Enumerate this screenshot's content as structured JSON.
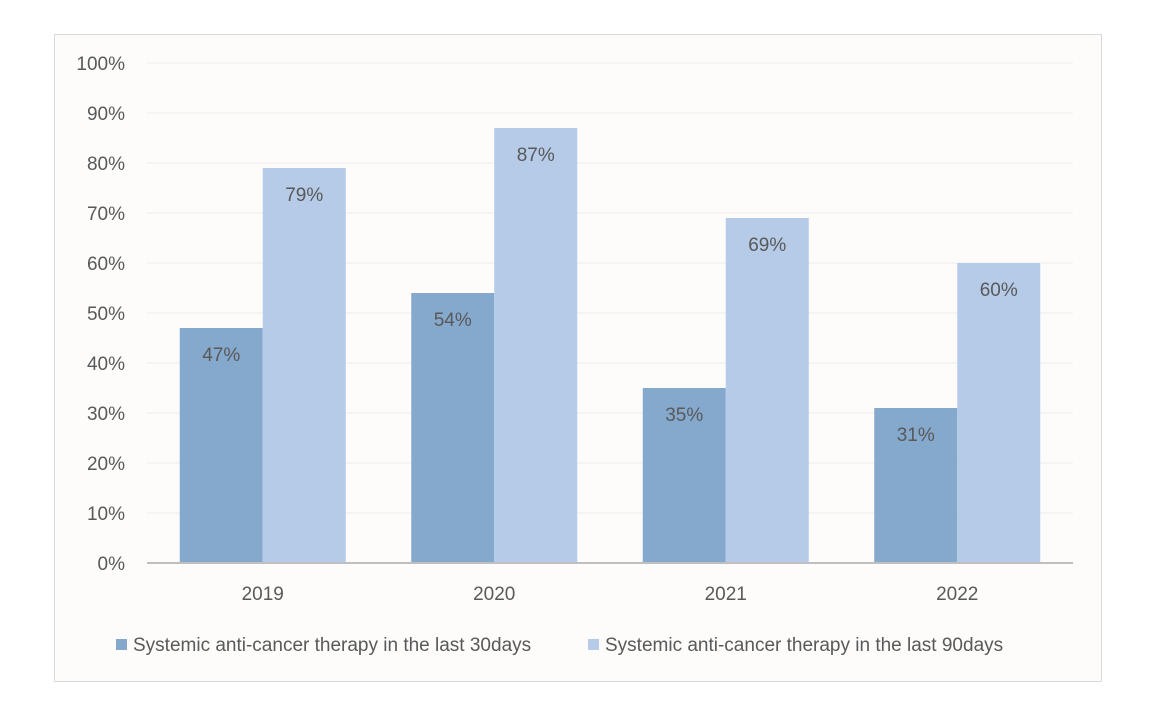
{
  "chart_data": {
    "type": "bar",
    "categories": [
      "2019",
      "2020",
      "2021",
      "2022"
    ],
    "series": [
      {
        "name": "Systemic anti-cancer therapy in the last 30days",
        "values": [
          47,
          54,
          35,
          31
        ],
        "labels": [
          "47%",
          "54%",
          "35%",
          "31%"
        ],
        "color": "#85a8cd"
      },
      {
        "name": "Systemic anti-cancer therapy in the last 90days",
        "values": [
          79,
          87,
          69,
          60
        ],
        "labels": [
          "79%",
          "87%",
          "69%",
          "60%"
        ],
        "color": "#b5cbe8"
      }
    ],
    "ylim": [
      0,
      100
    ],
    "yticks": [
      0,
      10,
      20,
      30,
      40,
      50,
      60,
      70,
      80,
      90,
      100
    ],
    "ytick_labels": [
      "0%",
      "10%",
      "20%",
      "30%",
      "40%",
      "50%",
      "60%",
      "70%",
      "80%",
      "90%",
      "100%"
    ],
    "grid": true,
    "legend_position": "bottom",
    "title": "",
    "xlabel": "",
    "ylabel": ""
  }
}
